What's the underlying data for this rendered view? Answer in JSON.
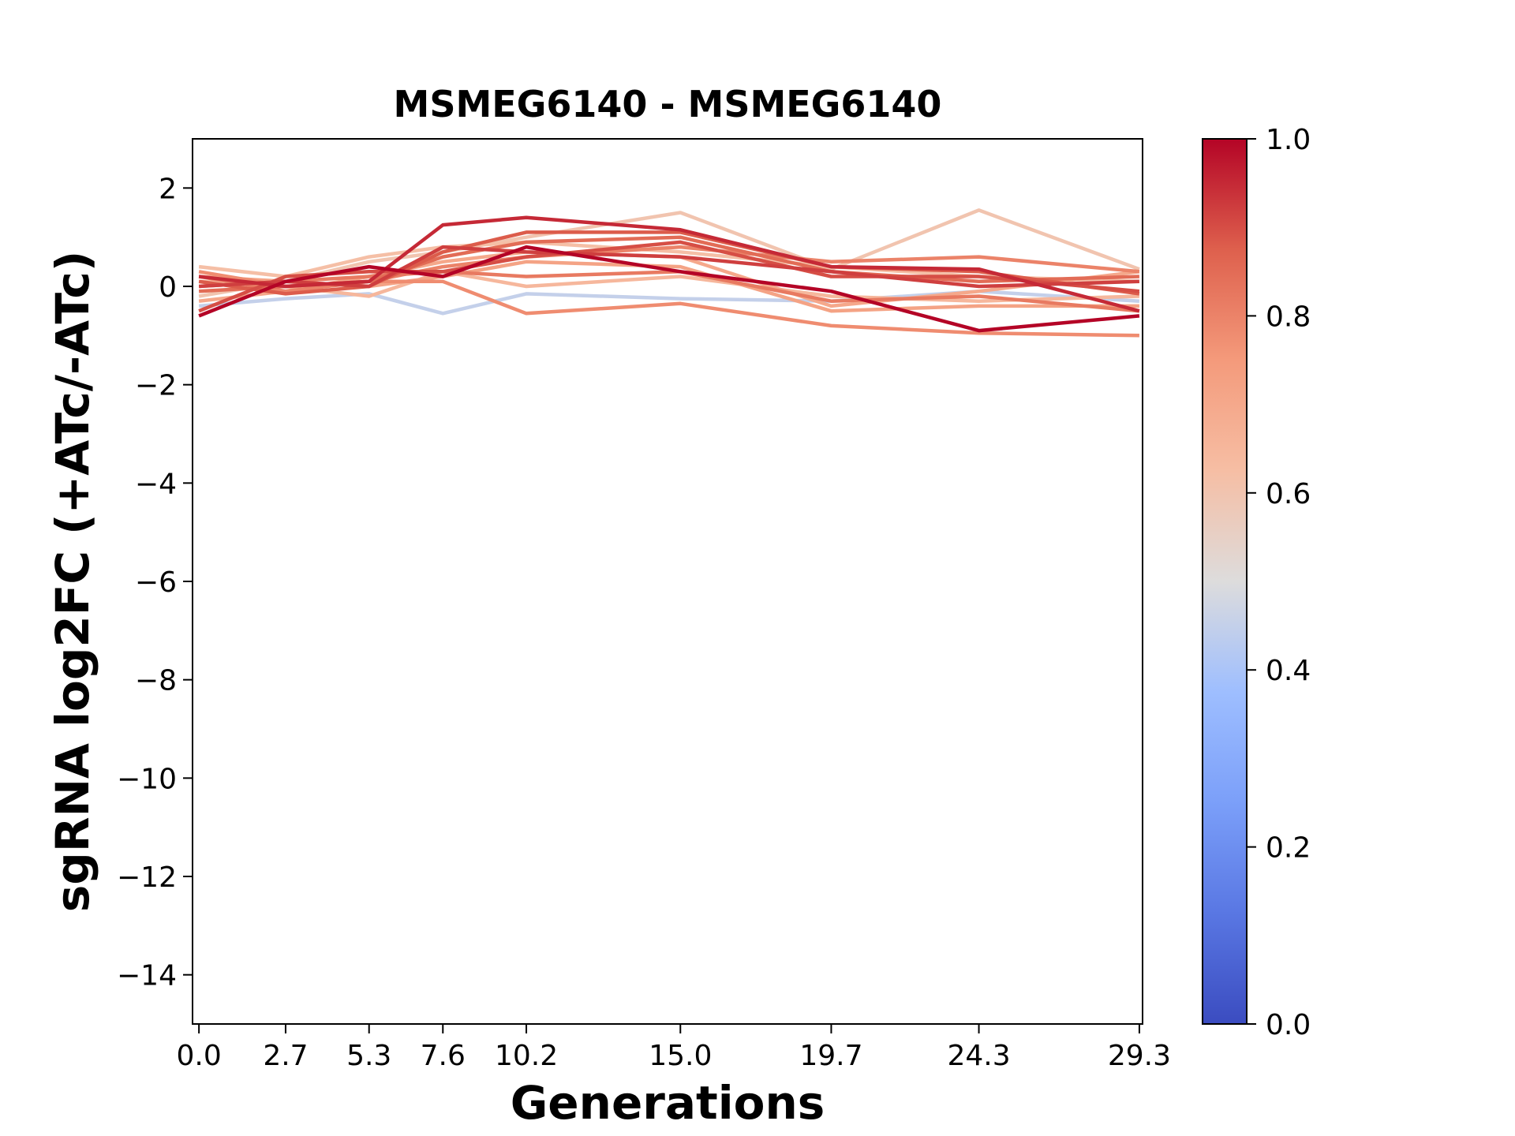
{
  "chart_data": {
    "type": "line",
    "title": "MSMEG6140 - MSMEG6140",
    "xlabel": "Generations",
    "ylabel": "sgRNA log2FC (+ATc/-ATc)",
    "x": [
      0.0,
      2.7,
      5.3,
      7.6,
      10.2,
      15.0,
      19.7,
      24.3,
      29.3
    ],
    "x_tick_labels": [
      "0.0",
      "2.7",
      "5.3",
      "7.6",
      "10.2",
      "15.0",
      "19.7",
      "24.3",
      "29.3"
    ],
    "xlim": [
      -0.2,
      29.4
    ],
    "ylim": [
      -15,
      3
    ],
    "y_ticks": [
      2,
      0,
      -2,
      -4,
      -6,
      -8,
      -10,
      -12,
      -14
    ],
    "y_tick_labels": [
      "2",
      "0",
      "−2",
      "−4",
      "−6",
      "−8",
      "−10",
      "−12",
      "−14"
    ],
    "colorbar": {
      "colormap": "coolwarm",
      "range": [
        0.0,
        1.0
      ],
      "ticks": [
        1.0,
        0.8,
        0.6,
        0.4,
        0.2,
        0.0
      ],
      "tick_labels": [
        "1.0",
        "0.8",
        "0.6",
        "0.4",
        "0.2",
        "0.0"
      ]
    },
    "series": [
      {
        "color_value": 0.45,
        "values": [
          -0.4,
          -0.25,
          -0.15,
          -0.55,
          -0.15,
          -0.25,
          -0.3,
          -0.1,
          -0.3
        ]
      },
      {
        "color_value": 0.6,
        "values": [
          -0.2,
          0.1,
          0.5,
          0.7,
          1.0,
          1.5,
          0.35,
          1.55,
          0.35
        ]
      },
      {
        "color_value": 0.62,
        "values": [
          0.4,
          0.2,
          0.6,
          0.8,
          0.9,
          0.7,
          0.4,
          0.2,
          0.1
        ]
      },
      {
        "color_value": 0.65,
        "values": [
          0.1,
          0.0,
          -0.2,
          0.3,
          0.0,
          0.2,
          -0.2,
          -0.3,
          -0.2
        ]
      },
      {
        "color_value": 0.7,
        "values": [
          -0.3,
          -0.1,
          0.2,
          0.5,
          0.7,
          0.6,
          -0.4,
          -0.1,
          0.3
        ]
      },
      {
        "color_value": 0.72,
        "values": [
          0.2,
          0.1,
          0.0,
          0.2,
          0.5,
          0.4,
          -0.5,
          -0.4,
          -0.4
        ]
      },
      {
        "color_value": 0.78,
        "values": [
          0.3,
          0.0,
          0.1,
          0.1,
          -0.55,
          -0.35,
          -0.8,
          -0.95,
          -1.0
        ]
      },
      {
        "color_value": 0.8,
        "values": [
          0.2,
          -0.1,
          0.1,
          0.4,
          0.6,
          0.8,
          0.5,
          0.6,
          0.3
        ]
      },
      {
        "color_value": 0.82,
        "values": [
          0.0,
          0.1,
          0.2,
          0.3,
          0.2,
          0.3,
          -0.3,
          -0.2,
          -0.5
        ]
      },
      {
        "color_value": 0.85,
        "values": [
          -0.1,
          0.0,
          0.1,
          0.6,
          0.9,
          1.0,
          0.3,
          0.1,
          0.2
        ]
      },
      {
        "color_value": 0.88,
        "values": [
          0.1,
          -0.15,
          0.0,
          0.7,
          1.1,
          1.1,
          0.4,
          0.3,
          -0.15
        ]
      },
      {
        "color_value": 0.9,
        "values": [
          -0.5,
          0.2,
          0.3,
          0.3,
          0.6,
          0.9,
          0.2,
          0.2,
          -0.1
        ]
      },
      {
        "color_value": 0.92,
        "values": [
          0.0,
          0.1,
          0.0,
          0.8,
          0.7,
          0.6,
          0.3,
          0.0,
          0.1
        ]
      },
      {
        "color_value": 0.95,
        "values": [
          0.2,
          0.0,
          0.1,
          1.25,
          1.4,
          1.15,
          0.4,
          0.35,
          -0.5
        ]
      },
      {
        "color_value": 1.0,
        "values": [
          -0.6,
          0.1,
          0.4,
          0.2,
          0.8,
          0.3,
          -0.1,
          -0.9,
          -0.6
        ]
      }
    ]
  }
}
